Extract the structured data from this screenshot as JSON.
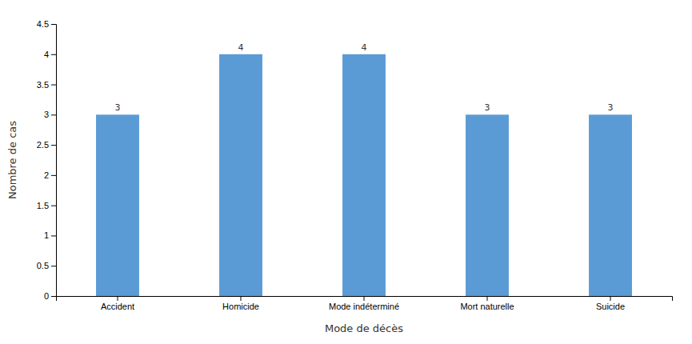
{
  "chart_data": {
    "type": "bar",
    "categories": [
      "Accident",
      "Homicide",
      "Mode indéterminé",
      "Mort naturelle",
      "Suicide"
    ],
    "values": [
      3,
      4,
      4,
      3,
      3
    ],
    "color": "#5b9bd5",
    "xlabel": "Mode de décès",
    "ylabel": "Nombre de cas",
    "ylim": [
      0,
      4.5
    ],
    "yticks": [
      0,
      0.5,
      1,
      1.5,
      2,
      2.5,
      3,
      3.5,
      4,
      4.5
    ],
    "data_labels": true,
    "grid": false
  }
}
